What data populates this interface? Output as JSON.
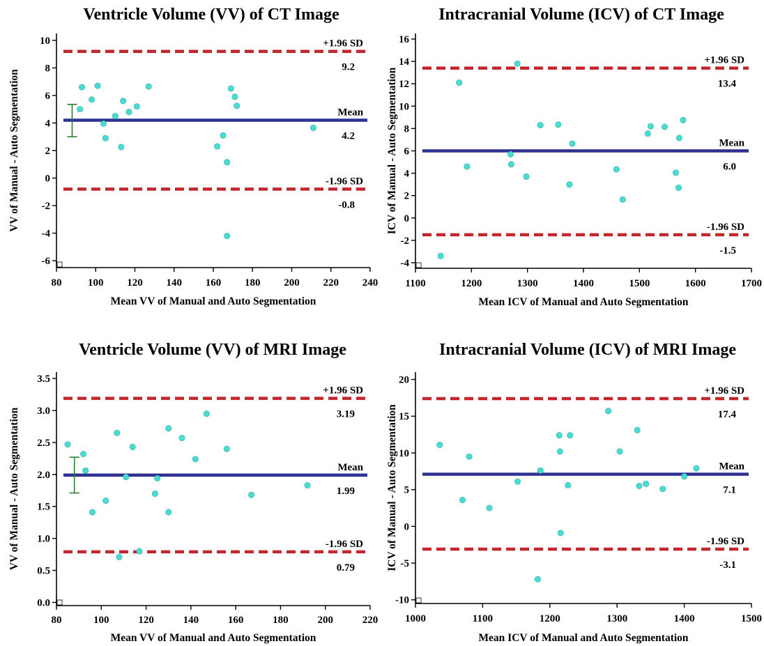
{
  "chart_data": [
    {
      "type": "scatter",
      "title": "Ventricle Volume (VV) of CT Image",
      "xlabel": "Mean VV of Manual and Auto Segmentation",
      "ylabel": "VV of Manual - Auto Segmentation",
      "xlim": [
        80,
        240
      ],
      "ylim": [
        -6.5,
        10.5
      ],
      "xticks": [
        80,
        100,
        120,
        140,
        160,
        180,
        200,
        220,
        240
      ],
      "yticks": [
        -6,
        -4,
        -2,
        0,
        2,
        4,
        6,
        8,
        10
      ],
      "xtick_labels": [
        "80",
        "100",
        "120",
        "140",
        "160",
        "180",
        "200",
        "220",
        "240"
      ],
      "ytick_labels": [
        "-6",
        "-4",
        "-2",
        "0",
        "2",
        "4",
        "6",
        "8",
        "10"
      ],
      "mean": 4.2,
      "mean_label": "Mean",
      "mean_value_label": "4.2",
      "upper_loa": 9.2,
      "upper_label": "+1.96 SD",
      "upper_value_label": "9.2",
      "lower_loa": -0.8,
      "lower_label": "-1.96 SD",
      "lower_value_label": "-0.8",
      "ci_bar": {
        "x": 88,
        "low": 3.0,
        "high": 5.35
      },
      "points": [
        {
          "x": 92,
          "y": 5.0
        },
        {
          "x": 93,
          "y": 6.6
        },
        {
          "x": 98,
          "y": 5.7
        },
        {
          "x": 101,
          "y": 6.7
        },
        {
          "x": 104,
          "y": 3.95
        },
        {
          "x": 105,
          "y": 2.9
        },
        {
          "x": 110,
          "y": 4.5
        },
        {
          "x": 113,
          "y": 2.25
        },
        {
          "x": 114,
          "y": 5.6
        },
        {
          "x": 117,
          "y": 4.8
        },
        {
          "x": 121,
          "y": 5.2
        },
        {
          "x": 127,
          "y": 6.65
        },
        {
          "x": 162,
          "y": 2.3
        },
        {
          "x": 165,
          "y": 3.1
        },
        {
          "x": 167,
          "y": 1.15
        },
        {
          "x": 167,
          "y": -4.2
        },
        {
          "x": 169,
          "y": 6.5
        },
        {
          "x": 171,
          "y": 5.9
        },
        {
          "x": 172,
          "y": 5.25
        },
        {
          "x": 211,
          "y": 3.65
        }
      ],
      "colors": {
        "point": "#48ddd3",
        "mean": "#2e3192",
        "loa": "#c1272d",
        "ci": "#2e7d32"
      }
    },
    {
      "type": "scatter",
      "title": "Intracranial Volume (ICV) of CT Image",
      "xlabel": "Mean ICV of Manual and Auto Segmentation",
      "ylabel": "ICV of Manual - Auto Segmentation",
      "xlim": [
        1100,
        1700
      ],
      "ylim": [
        -4.5,
        16.5
      ],
      "xticks": [
        1100,
        1200,
        1300,
        1400,
        1500,
        1600,
        1700
      ],
      "yticks": [
        -4,
        -2,
        0,
        2,
        4,
        6,
        8,
        10,
        12,
        14,
        16
      ],
      "xtick_labels": [
        "1100",
        "1200",
        "1300",
        "1400",
        "1500",
        "1600",
        "1700"
      ],
      "ytick_labels": [
        "-4",
        "-2",
        "0",
        "2",
        "4",
        "6",
        "8",
        "10",
        "12",
        "14",
        "16"
      ],
      "mean": 6.0,
      "mean_label": "Mean",
      "mean_value_label": "6.0",
      "upper_loa": 13.4,
      "upper_label": "+1.96 SD",
      "upper_value_label": "13.4",
      "lower_loa": -1.5,
      "lower_label": "-1.96 SD",
      "lower_value_label": "-1.5",
      "ci_bar": null,
      "points": [
        {
          "x": 1145,
          "y": -3.4
        },
        {
          "x": 1178,
          "y": 12.1
        },
        {
          "x": 1192,
          "y": 4.6
        },
        {
          "x": 1270,
          "y": 5.7
        },
        {
          "x": 1271,
          "y": 4.8
        },
        {
          "x": 1282,
          "y": 13.8
        },
        {
          "x": 1298,
          "y": 3.7
        },
        {
          "x": 1323,
          "y": 8.3
        },
        {
          "x": 1355,
          "y": 8.35
        },
        {
          "x": 1375,
          "y": 3.0
        },
        {
          "x": 1380,
          "y": 6.65
        },
        {
          "x": 1459,
          "y": 4.35
        },
        {
          "x": 1470,
          "y": 1.65
        },
        {
          "x": 1515,
          "y": 7.55
        },
        {
          "x": 1520,
          "y": 8.2
        },
        {
          "x": 1545,
          "y": 8.15
        },
        {
          "x": 1565,
          "y": 4.05
        },
        {
          "x": 1570,
          "y": 2.7
        },
        {
          "x": 1571,
          "y": 7.15
        },
        {
          "x": 1578,
          "y": 8.75
        }
      ],
      "colors": {
        "point": "#48ddd3",
        "mean": "#2e3192",
        "loa": "#c1272d",
        "ci": "#2e7d32"
      }
    },
    {
      "type": "scatter",
      "title": "Ventricle Volume (VV) of MRI Image",
      "xlabel": "Mean VV of Manual and Auto Segmentation",
      "ylabel": "VV of Manual - Auto Segmentation",
      "xlim": [
        80,
        220
      ],
      "ylim": [
        -0.05,
        3.6
      ],
      "xticks": [
        80,
        100,
        120,
        140,
        160,
        180,
        200,
        220
      ],
      "yticks": [
        0.0,
        0.5,
        1.0,
        1.5,
        2.0,
        2.5,
        3.0,
        3.5
      ],
      "xtick_labels": [
        "80",
        "100",
        "120",
        "140",
        "160",
        "180",
        "200",
        "220"
      ],
      "ytick_labels": [
        "0.0",
        "0.5",
        "1.0",
        "1.5",
        "2.0",
        "2.5",
        "3.0",
        "3.5"
      ],
      "mean": 1.99,
      "mean_label": "Mean",
      "mean_value_label": "1.99",
      "upper_loa": 3.19,
      "upper_label": "+1.96 SD",
      "upper_value_label": "3.19",
      "lower_loa": 0.79,
      "lower_label": "-1.96 SD",
      "lower_value_label": "0.79",
      "ci_bar": {
        "x": 88,
        "low": 1.71,
        "high": 2.27
      },
      "points": [
        {
          "x": 85,
          "y": 2.47
        },
        {
          "x": 92,
          "y": 2.32
        },
        {
          "x": 93,
          "y": 2.06
        },
        {
          "x": 96,
          "y": 1.41
        },
        {
          "x": 102,
          "y": 1.59
        },
        {
          "x": 107,
          "y": 2.65
        },
        {
          "x": 108,
          "y": 0.71
        },
        {
          "x": 111,
          "y": 1.96
        },
        {
          "x": 114,
          "y": 2.43
        },
        {
          "x": 117,
          "y": 0.8
        },
        {
          "x": 124,
          "y": 1.7
        },
        {
          "x": 125,
          "y": 1.94
        },
        {
          "x": 130,
          "y": 2.72
        },
        {
          "x": 130,
          "y": 1.41
        },
        {
          "x": 136,
          "y": 2.57
        },
        {
          "x": 142,
          "y": 2.24
        },
        {
          "x": 147,
          "y": 2.95
        },
        {
          "x": 156,
          "y": 2.4
        },
        {
          "x": 167,
          "y": 1.68
        },
        {
          "x": 192,
          "y": 1.83
        }
      ],
      "colors": {
        "point": "#48ddd3",
        "mean": "#2e3192",
        "loa": "#c1272d",
        "ci": "#2e7d32"
      }
    },
    {
      "type": "scatter",
      "title": "Intracranial Volume (ICV) of MRI Image",
      "xlabel": "Mean ICV of Manual and Auto Segmentation",
      "ylabel": "ICV of Manual - Auto Segmentation",
      "xlim": [
        1000,
        1500
      ],
      "ylim": [
        -10.5,
        21
      ],
      "xticks": [
        1000,
        1100,
        1200,
        1300,
        1400,
        1500
      ],
      "yticks": [
        -10,
        -5,
        0,
        5,
        10,
        15,
        20
      ],
      "xtick_labels": [
        "1000",
        "1100",
        "1200",
        "1300",
        "1400",
        "1500"
      ],
      "ytick_labels": [
        "-10",
        "-5",
        "0",
        "5",
        "10",
        "15",
        "20"
      ],
      "mean": 7.1,
      "mean_label": "Mean",
      "mean_value_label": "7.1",
      "upper_loa": 17.4,
      "upper_label": "+1.96 SD",
      "upper_value_label": "17.4",
      "lower_loa": -3.1,
      "lower_label": "-1.96 SD",
      "lower_value_label": "-3.1",
      "ci_bar": null,
      "points": [
        {
          "x": 1036,
          "y": 11.1
        },
        {
          "x": 1070,
          "y": 3.6
        },
        {
          "x": 1080,
          "y": 9.5
        },
        {
          "x": 1110,
          "y": 2.5
        },
        {
          "x": 1152,
          "y": 6.1
        },
        {
          "x": 1182,
          "y": -7.2
        },
        {
          "x": 1186,
          "y": 7.6
        },
        {
          "x": 1214,
          "y": 12.4
        },
        {
          "x": 1215,
          "y": 10.2
        },
        {
          "x": 1216,
          "y": -0.9
        },
        {
          "x": 1227,
          "y": 5.6
        },
        {
          "x": 1230,
          "y": 12.4
        },
        {
          "x": 1287,
          "y": 15.7
        },
        {
          "x": 1304,
          "y": 10.2
        },
        {
          "x": 1330,
          "y": 13.1
        },
        {
          "x": 1333,
          "y": 5.5
        },
        {
          "x": 1343,
          "y": 5.8
        },
        {
          "x": 1368,
          "y": 5.1
        },
        {
          "x": 1400,
          "y": 6.8
        },
        {
          "x": 1418,
          "y": 7.9
        }
      ],
      "colors": {
        "point": "#48ddd3",
        "mean": "#2e3192",
        "loa": "#c1272d",
        "ci": "#2e7d32"
      }
    }
  ]
}
